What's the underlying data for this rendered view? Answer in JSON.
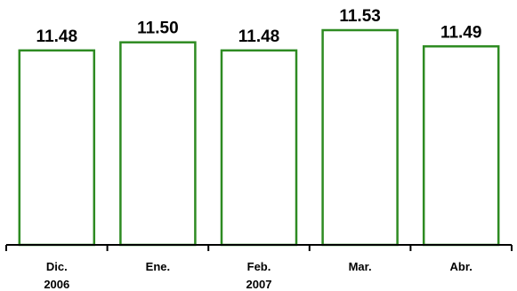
{
  "chart_data": {
    "type": "bar",
    "categories": [
      "Dic.",
      "Ene.",
      "Feb.",
      "Mar.",
      "Abr."
    ],
    "values": [
      11.48,
      11.5,
      11.48,
      11.53,
      11.49
    ],
    "value_labels": [
      "11.48",
      "11.50",
      "11.48",
      "11.53",
      "11.49"
    ],
    "year_labels": [
      {
        "text": "2006",
        "category_index": 0
      },
      {
        "text": "2007",
        "category_index": 2
      }
    ],
    "title": "",
    "xlabel": "",
    "ylabel": "",
    "y_axis_visible": false,
    "grid": false,
    "legend": "none",
    "bar_fill": "#ffffff",
    "bar_edge_color": "#2e8b22"
  }
}
